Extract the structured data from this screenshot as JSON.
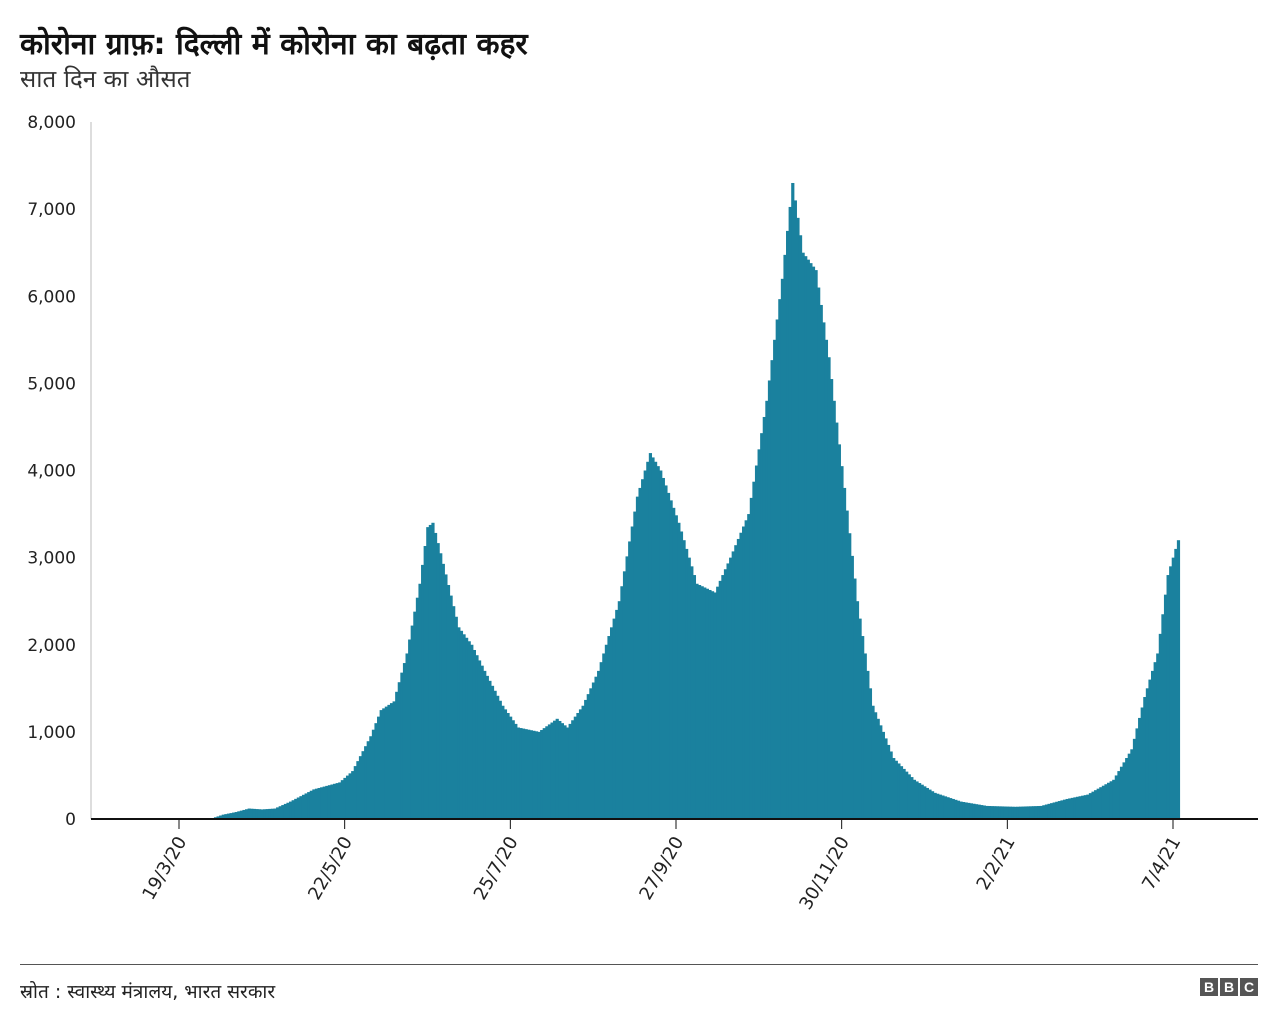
{
  "title": "कोरोना ग्राफ़: दिल्ली में कोरोना का बढ़ता कहर",
  "subtitle": "सात दिन का औसत",
  "source": "स्रोत : स्वास्थ्य मंत्रालय, भारत सरकार",
  "brand": {
    "logo_letters": [
      "B",
      "B",
      "C"
    ]
  },
  "colors": {
    "bar": "#1a819e",
    "axis": "#222222"
  },
  "chart_data": {
    "type": "bar",
    "x_start": "2020-03-02",
    "x_end": "2021-04-09",
    "x_tick_labels": [
      "19/3/20",
      "22/5/20",
      "25/7/20",
      "27/9/20",
      "30/11/20",
      "2/2/21",
      "7/4/21"
    ],
    "y_tick_labels": [
      "0",
      "1,000",
      "2,000",
      "3,000",
      "4,000",
      "5,000",
      "6,000",
      "7,000",
      "8,000"
    ],
    "ylim": [
      0,
      8000
    ],
    "grid": false,
    "series": [
      {
        "keypoints": [
          [
            "2020-03-02",
            2
          ],
          [
            "2020-03-19",
            3
          ],
          [
            "2020-04-01",
            10
          ],
          [
            "2020-04-05",
            50
          ],
          [
            "2020-04-10",
            80
          ],
          [
            "2020-04-15",
            120
          ],
          [
            "2020-04-20",
            110
          ],
          [
            "2020-04-25",
            120
          ],
          [
            "2020-05-01",
            200
          ],
          [
            "2020-05-10",
            340
          ],
          [
            "2020-05-15",
            380
          ],
          [
            "2020-05-20",
            420
          ],
          [
            "2020-05-25",
            550
          ],
          [
            "2020-06-01",
            950
          ],
          [
            "2020-06-05",
            1250
          ],
          [
            "2020-06-10",
            1350
          ],
          [
            "2020-06-15",
            1900
          ],
          [
            "2020-06-20",
            2700
          ],
          [
            "2020-06-23",
            3350
          ],
          [
            "2020-06-25",
            3400
          ],
          [
            "2020-06-28",
            3050
          ],
          [
            "2020-07-05",
            2200
          ],
          [
            "2020-07-10",
            2000
          ],
          [
            "2020-07-15",
            1700
          ],
          [
            "2020-07-22",
            1300
          ],
          [
            "2020-07-28",
            1050
          ],
          [
            "2020-08-05",
            1000
          ],
          [
            "2020-08-12",
            1150
          ],
          [
            "2020-08-16",
            1050
          ],
          [
            "2020-08-22",
            1300
          ],
          [
            "2020-08-28",
            1700
          ],
          [
            "2020-09-05",
            2500
          ],
          [
            "2020-09-12",
            3700
          ],
          [
            "2020-09-17",
            4200
          ],
          [
            "2020-09-21",
            4000
          ],
          [
            "2020-09-28",
            3400
          ],
          [
            "2020-10-05",
            2700
          ],
          [
            "2020-10-12",
            2600
          ],
          [
            "2020-10-18",
            3000
          ],
          [
            "2020-10-25",
            3500
          ],
          [
            "2020-11-01",
            4800
          ],
          [
            "2020-11-07",
            6200
          ],
          [
            "2020-11-11",
            7300
          ],
          [
            "2020-11-15",
            6500
          ],
          [
            "2020-11-20",
            6300
          ],
          [
            "2020-11-25",
            5300
          ],
          [
            "2020-12-01",
            3800
          ],
          [
            "2020-12-06",
            2500
          ],
          [
            "2020-12-12",
            1300
          ],
          [
            "2020-12-20",
            700
          ],
          [
            "2020-12-28",
            450
          ],
          [
            "2021-01-05",
            300
          ],
          [
            "2021-01-15",
            200
          ],
          [
            "2021-01-25",
            150
          ],
          [
            "2021-02-05",
            140
          ],
          [
            "2021-02-15",
            150
          ],
          [
            "2021-02-25",
            230
          ],
          [
            "2021-03-05",
            280
          ],
          [
            "2021-03-15",
            450
          ],
          [
            "2021-03-22",
            800
          ],
          [
            "2021-03-27",
            1400
          ],
          [
            "2021-04-01",
            1900
          ],
          [
            "2021-04-05",
            2800
          ],
          [
            "2021-04-09",
            3200
          ]
        ]
      }
    ]
  }
}
